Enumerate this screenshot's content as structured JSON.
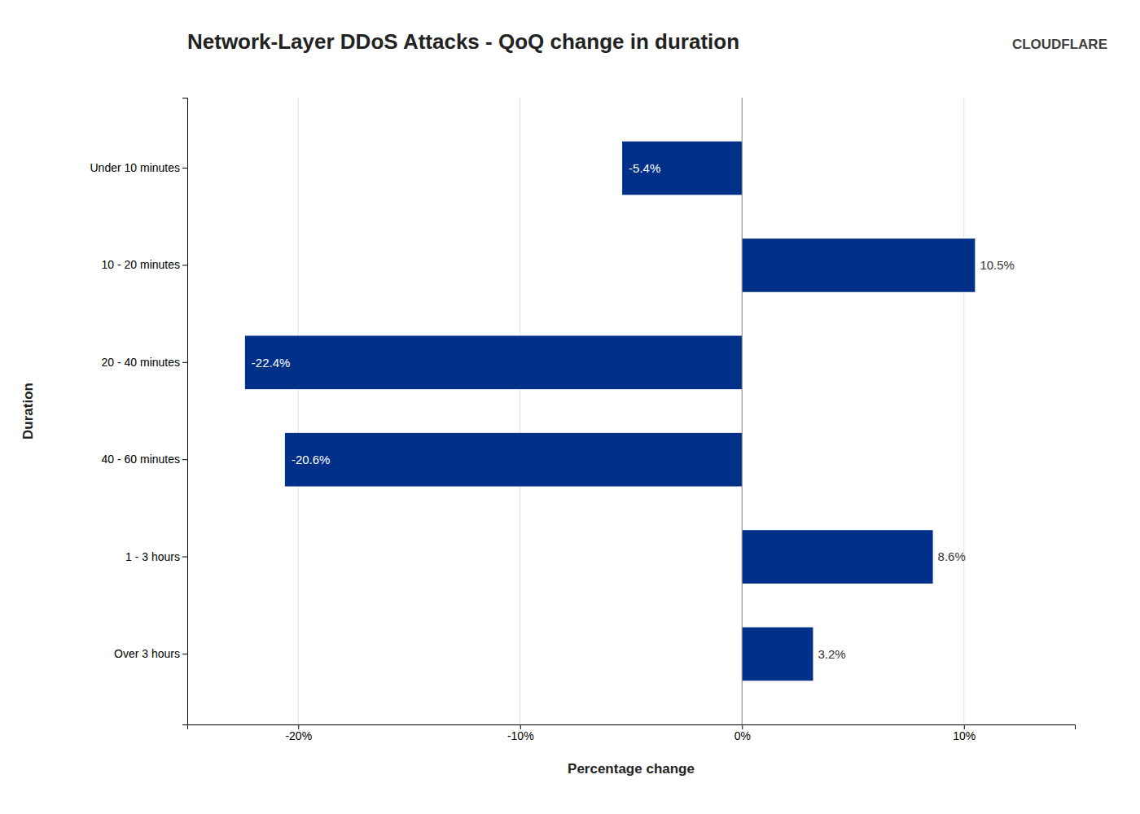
{
  "chart_data": {
    "type": "bar",
    "orientation": "horizontal",
    "title": "Network-Layer DDoS Attacks - QoQ change in duration",
    "x_label": "Percentage change",
    "y_label": "Duration",
    "categories": [
      "Over 3 hours",
      "1 - 3 hours",
      "40 - 60 minutes",
      "20 - 40 minutes",
      "10 - 20 minutes",
      "Under 10 minutes"
    ],
    "values": [
      3.2,
      8.6,
      -20.6,
      -22.4,
      10.5,
      -5.4
    ],
    "value_labels": [
      "3.2%",
      "8.6%",
      "-20.6%",
      "-22.4%",
      "10.5%",
      "-5.4%"
    ],
    "data_labels": true,
    "color": "#003087",
    "xlim": [
      -25,
      15
    ],
    "xticks": [
      {
        "value": -20,
        "label": "-20%"
      },
      {
        "value": -10,
        "label": "-10%"
      },
      {
        "value": 0,
        "label": "0%"
      },
      {
        "value": 10,
        "label": "10%"
      }
    ],
    "grid": true,
    "annotations": [
      "CLOUDFLARE"
    ]
  }
}
